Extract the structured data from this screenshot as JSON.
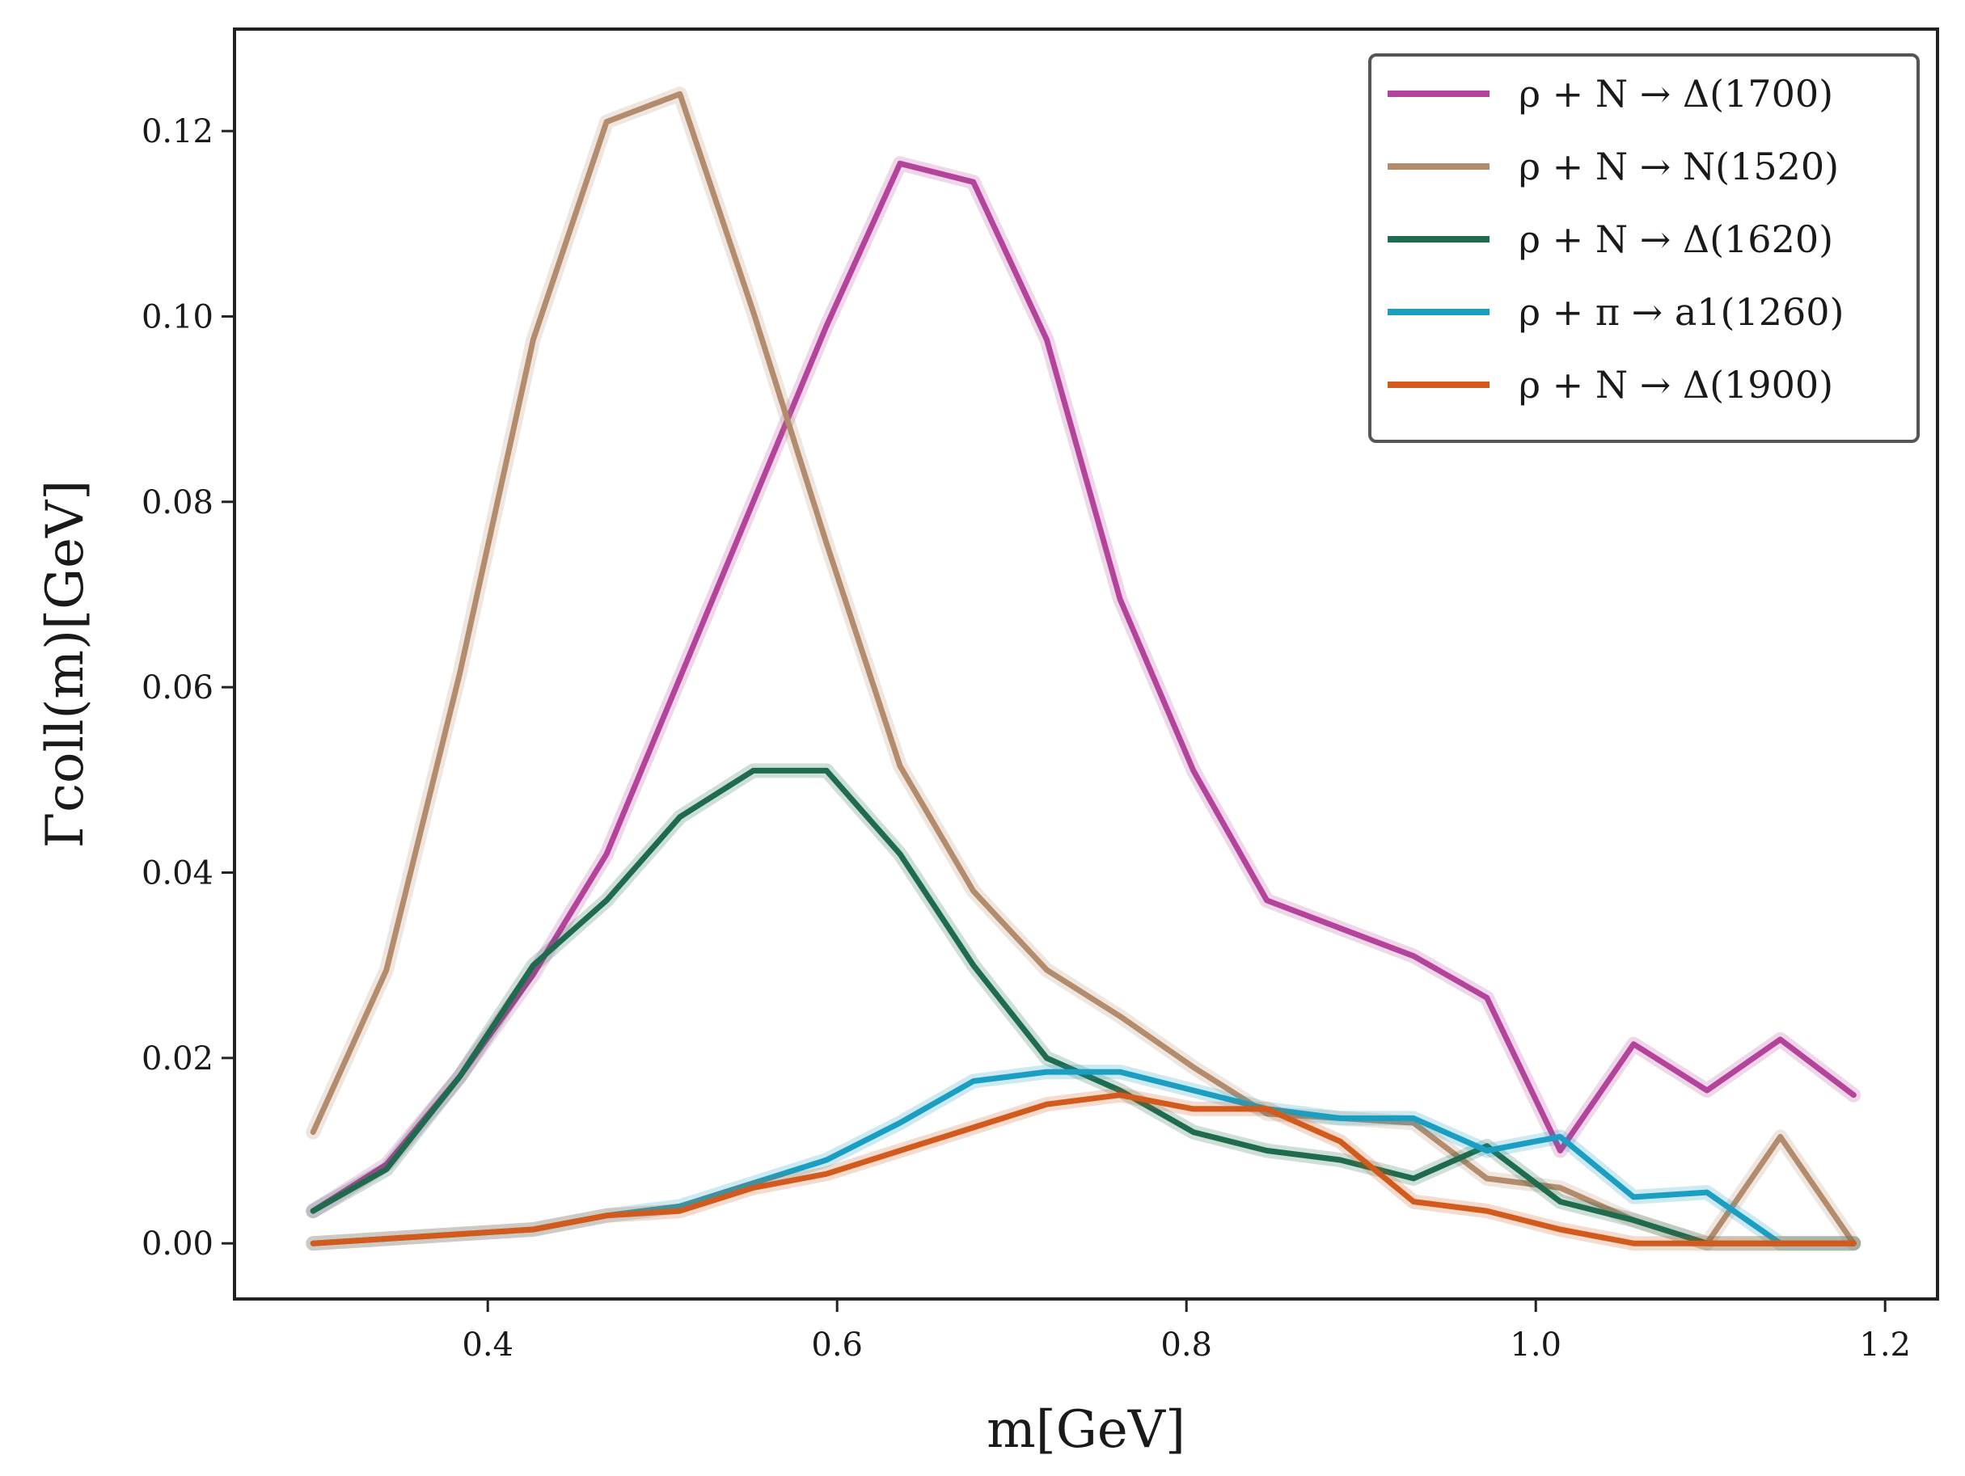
{
  "chart_data": {
    "type": "line",
    "title": "",
    "xlabel": "m[GeV]",
    "ylabel": "Γcoll(m)[GeV]",
    "xlim": [
      0.255,
      1.23
    ],
    "ylim": [
      -0.006,
      0.131
    ],
    "xticks": [
      0.4,
      0.6,
      0.8,
      1.0,
      1.2
    ],
    "xtick_labels": [
      "0.4",
      "0.6",
      "0.8",
      "1.0",
      "1.2"
    ],
    "yticks": [
      0.0,
      0.02,
      0.04,
      0.06,
      0.08,
      0.1,
      0.12
    ],
    "ytick_labels": [
      "0.00",
      "0.02",
      "0.04",
      "0.06",
      "0.08",
      "0.10",
      "0.12"
    ],
    "grid": false,
    "legend_position": "top-right",
    "x": [
      0.3,
      0.342,
      0.384,
      0.426,
      0.468,
      0.51,
      0.552,
      0.594,
      0.636,
      0.678,
      0.72,
      0.762,
      0.804,
      0.846,
      0.888,
      0.93,
      0.972,
      1.014,
      1.056,
      1.098,
      1.14,
      1.182
    ],
    "series": [
      {
        "name": "ρ + N → Δ(1700)",
        "color": "#b4439b",
        "values": [
          0.0035,
          0.0085,
          0.018,
          0.029,
          0.042,
          0.061,
          0.08,
          0.099,
          0.1165,
          0.1145,
          0.0975,
          0.0695,
          0.051,
          0.037,
          0.034,
          0.031,
          0.0265,
          0.01,
          0.0215,
          0.0165,
          0.022,
          0.016
        ]
      },
      {
        "name": "ρ + N → N(1520)",
        "color": "#b38b6d",
        "values": [
          0.012,
          0.0295,
          0.0615,
          0.0975,
          0.121,
          0.124,
          0.1005,
          0.0755,
          0.0515,
          0.038,
          0.0295,
          0.0245,
          0.019,
          0.014,
          0.0135,
          0.013,
          0.007,
          0.006,
          0.0025,
          0.0,
          0.0115,
          0.0
        ]
      },
      {
        "name": "ρ + N → Δ(1620)",
        "color": "#1f6b4e",
        "values": [
          0.0035,
          0.008,
          0.018,
          0.03,
          0.037,
          0.046,
          0.051,
          0.051,
          0.042,
          0.03,
          0.02,
          0.0165,
          0.012,
          0.01,
          0.009,
          0.007,
          0.0105,
          0.0045,
          0.0025,
          0.0,
          0.0,
          0.0
        ]
      },
      {
        "name": "ρ + π → a1(1260)",
        "color": "#1a9ec2",
        "values": [
          0.0,
          0.0005,
          0.001,
          0.0015,
          0.003,
          0.004,
          0.0065,
          0.009,
          0.013,
          0.0175,
          0.0185,
          0.0185,
          0.0165,
          0.0145,
          0.0135,
          0.0135,
          0.01,
          0.0115,
          0.005,
          0.0055,
          0.0,
          0.0
        ]
      },
      {
        "name": "ρ + N → Δ(1900)",
        "color": "#d25a1c",
        "values": [
          0.0,
          0.0005,
          0.001,
          0.0015,
          0.003,
          0.0035,
          0.006,
          0.0075,
          0.01,
          0.0125,
          0.015,
          0.016,
          0.0145,
          0.0145,
          0.011,
          0.0045,
          0.0035,
          0.0015,
          0.0,
          0.0,
          0.0,
          0.0
        ]
      }
    ]
  }
}
